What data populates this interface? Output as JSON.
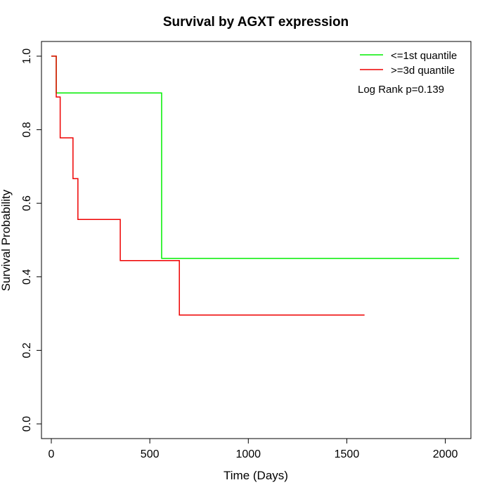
{
  "chart_data": {
    "type": "line",
    "title": "Survival by AGXT expression",
    "xlabel": "Time (Days)",
    "ylabel": "Survival Probability",
    "xlim": [
      -50,
      2130
    ],
    "ylim": [
      -0.04,
      1.04
    ],
    "x_ticks": [
      "0",
      "500",
      "1000",
      "1500",
      "2000"
    ],
    "y_ticks": [
      "0.0",
      "0.2",
      "0.4",
      "0.6",
      "0.8",
      "1.0"
    ],
    "grid": false,
    "legend_position": "top-right",
    "annotation": "Log Rank p=0.139",
    "series": [
      {
        "name": "<=1st quantile",
        "color": "#00ee00",
        "step": true,
        "x": [
          0,
          25,
          560,
          2070
        ],
        "y": [
          1.0,
          0.9,
          0.45,
          0.45
        ]
      },
      {
        "name": ">=3d quantile",
        "color": "#ee0000",
        "step": true,
        "x": [
          0,
          25,
          45,
          110,
          135,
          350,
          650,
          1590
        ],
        "y": [
          1.0,
          0.889,
          0.778,
          0.667,
          0.556,
          0.444,
          0.296,
          0.296
        ]
      }
    ]
  }
}
